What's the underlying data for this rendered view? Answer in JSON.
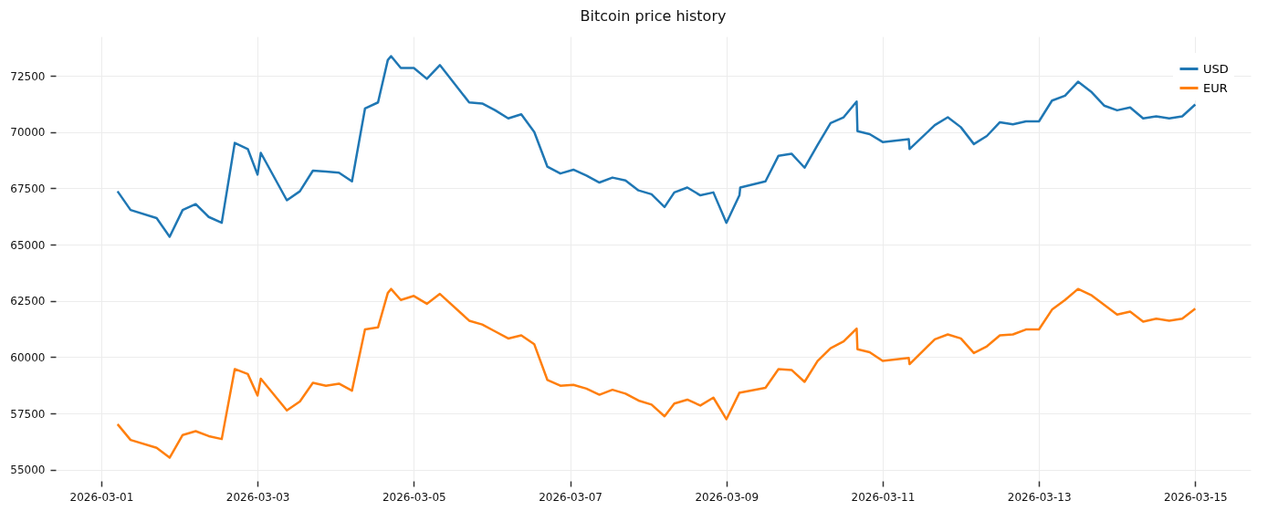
{
  "chart_data": {
    "type": "line",
    "title": "Bitcoin price history",
    "x": [
      "2026-03-01T05:00",
      "2026-03-01T09:00",
      "2026-03-01T17:00",
      "2026-03-01T21:00",
      "2026-03-02T01:00",
      "2026-03-02T05:00",
      "2026-03-02T09:00",
      "2026-03-02T13:00",
      "2026-03-02T17:00",
      "2026-03-02T21:00",
      "2026-03-03T00:00",
      "2026-03-03T01:00",
      "2026-03-03T09:00",
      "2026-03-03T13:00",
      "2026-03-03T17:00",
      "2026-03-03T21:00",
      "2026-03-04T01:00",
      "2026-03-04T05:00",
      "2026-03-04T09:00",
      "2026-03-04T13:00",
      "2026-03-04T16:00",
      "2026-03-04T17:00",
      "2026-03-04T20:00",
      "2026-03-05T00:00",
      "2026-03-05T04:00",
      "2026-03-05T08:00",
      "2026-03-05T17:00",
      "2026-03-05T21:00",
      "2026-03-06T01:00",
      "2026-03-06T05:00",
      "2026-03-06T09:00",
      "2026-03-06T13:00",
      "2026-03-06T17:00",
      "2026-03-06T21:00",
      "2026-03-07T01:00",
      "2026-03-07T05:00",
      "2026-03-07T09:00",
      "2026-03-07T13:00",
      "2026-03-07T17:00",
      "2026-03-07T21:00",
      "2026-03-08T01:00",
      "2026-03-08T05:00",
      "2026-03-08T08:00",
      "2026-03-08T12:00",
      "2026-03-08T16:00",
      "2026-03-08T20:00",
      "2026-03-09T00:00",
      "2026-03-09T04:00",
      "2026-03-09T04:15",
      "2026-03-09T12:00",
      "2026-03-09T16:00",
      "2026-03-09T20:00",
      "2026-03-10T00:00",
      "2026-03-10T04:00",
      "2026-03-10T08:00",
      "2026-03-10T12:00",
      "2026-03-10T16:00",
      "2026-03-10T16:15",
      "2026-03-10T20:00",
      "2026-03-11T00:00",
      "2026-03-11T08:00",
      "2026-03-11T08:15",
      "2026-03-11T16:00",
      "2026-03-11T20:00",
      "2026-03-12T00:00",
      "2026-03-12T04:00",
      "2026-03-12T08:00",
      "2026-03-12T12:00",
      "2026-03-12T16:00",
      "2026-03-12T20:00",
      "2026-03-13T00:00",
      "2026-03-13T04:00",
      "2026-03-13T08:00",
      "2026-03-13T12:00",
      "2026-03-13T16:00",
      "2026-03-13T20:00",
      "2026-03-14T00:00",
      "2026-03-14T04:00",
      "2026-03-14T08:00",
      "2026-03-14T12:00",
      "2026-03-14T16:00",
      "2026-03-14T20:00",
      "2026-03-15T00:00"
    ],
    "series": [
      {
        "name": "USD",
        "color": "#1f77b4",
        "values": [
          67370,
          66540,
          66180,
          65350,
          66540,
          66800,
          66230,
          65970,
          69520,
          69250,
          68110,
          69080,
          66970,
          67370,
          68290,
          68250,
          68200,
          67810,
          71050,
          71320,
          73200,
          73380,
          72850,
          72850,
          72370,
          72980,
          71320,
          71270,
          70970,
          70610,
          70790,
          70000,
          68470,
          68160,
          68330,
          68070,
          67760,
          67980,
          67850,
          67410,
          67240,
          66670,
          67320,
          67540,
          67190,
          67320,
          65970,
          67190,
          67540,
          67810,
          68950,
          69040,
          68420,
          69430,
          70400,
          70660,
          71360,
          70040,
          69910,
          69560,
          69690,
          69250,
          70310,
          70660,
          70220,
          69470,
          69830,
          70440,
          70350,
          70480,
          70480,
          71400,
          71620,
          72240,
          71800,
          71180,
          70970,
          71100,
          70610,
          70700,
          70610,
          70700,
          71230
        ]
      },
      {
        "name": "EUR",
        "color": "#ff7f0e",
        "values": [
          57020,
          56320,
          55970,
          55530,
          56540,
          56710,
          56490,
          56360,
          59470,
          59250,
          58290,
          59040,
          57630,
          58030,
          58860,
          58730,
          58820,
          58510,
          61230,
          61320,
          62850,
          63030,
          62540,
          62720,
          62370,
          62810,
          61620,
          61450,
          61140,
          60830,
          60970,
          60570,
          58990,
          58730,
          58770,
          58600,
          58330,
          58550,
          58380,
          58070,
          57890,
          57370,
          57940,
          58110,
          57850,
          58200,
          57240,
          58420,
          58420,
          58640,
          59470,
          59430,
          58900,
          59830,
          60400,
          60700,
          61270,
          60350,
          60220,
          59830,
          59960,
          59690,
          60790,
          61010,
          60830,
          60180,
          60480,
          60970,
          61010,
          61230,
          61230,
          62110,
          62540,
          63030,
          62760,
          62330,
          61890,
          62020,
          61580,
          61710,
          61620,
          61710,
          62150
        ]
      }
    ],
    "xlim": [
      "2026-02-28T10:00",
      "2026-03-15T17:00"
    ],
    "xticks": [
      "2026-03-01",
      "2026-03-03",
      "2026-03-05",
      "2026-03-07",
      "2026-03-09",
      "2026-03-11",
      "2026-03-13",
      "2026-03-15"
    ],
    "ylim": [
      54500,
      74250
    ],
    "yticks": [
      55000,
      57500,
      60000,
      62500,
      65000,
      67500,
      70000,
      72500
    ],
    "grid": true,
    "legend": "top right",
    "marker": "none",
    "line_style": "solid"
  }
}
